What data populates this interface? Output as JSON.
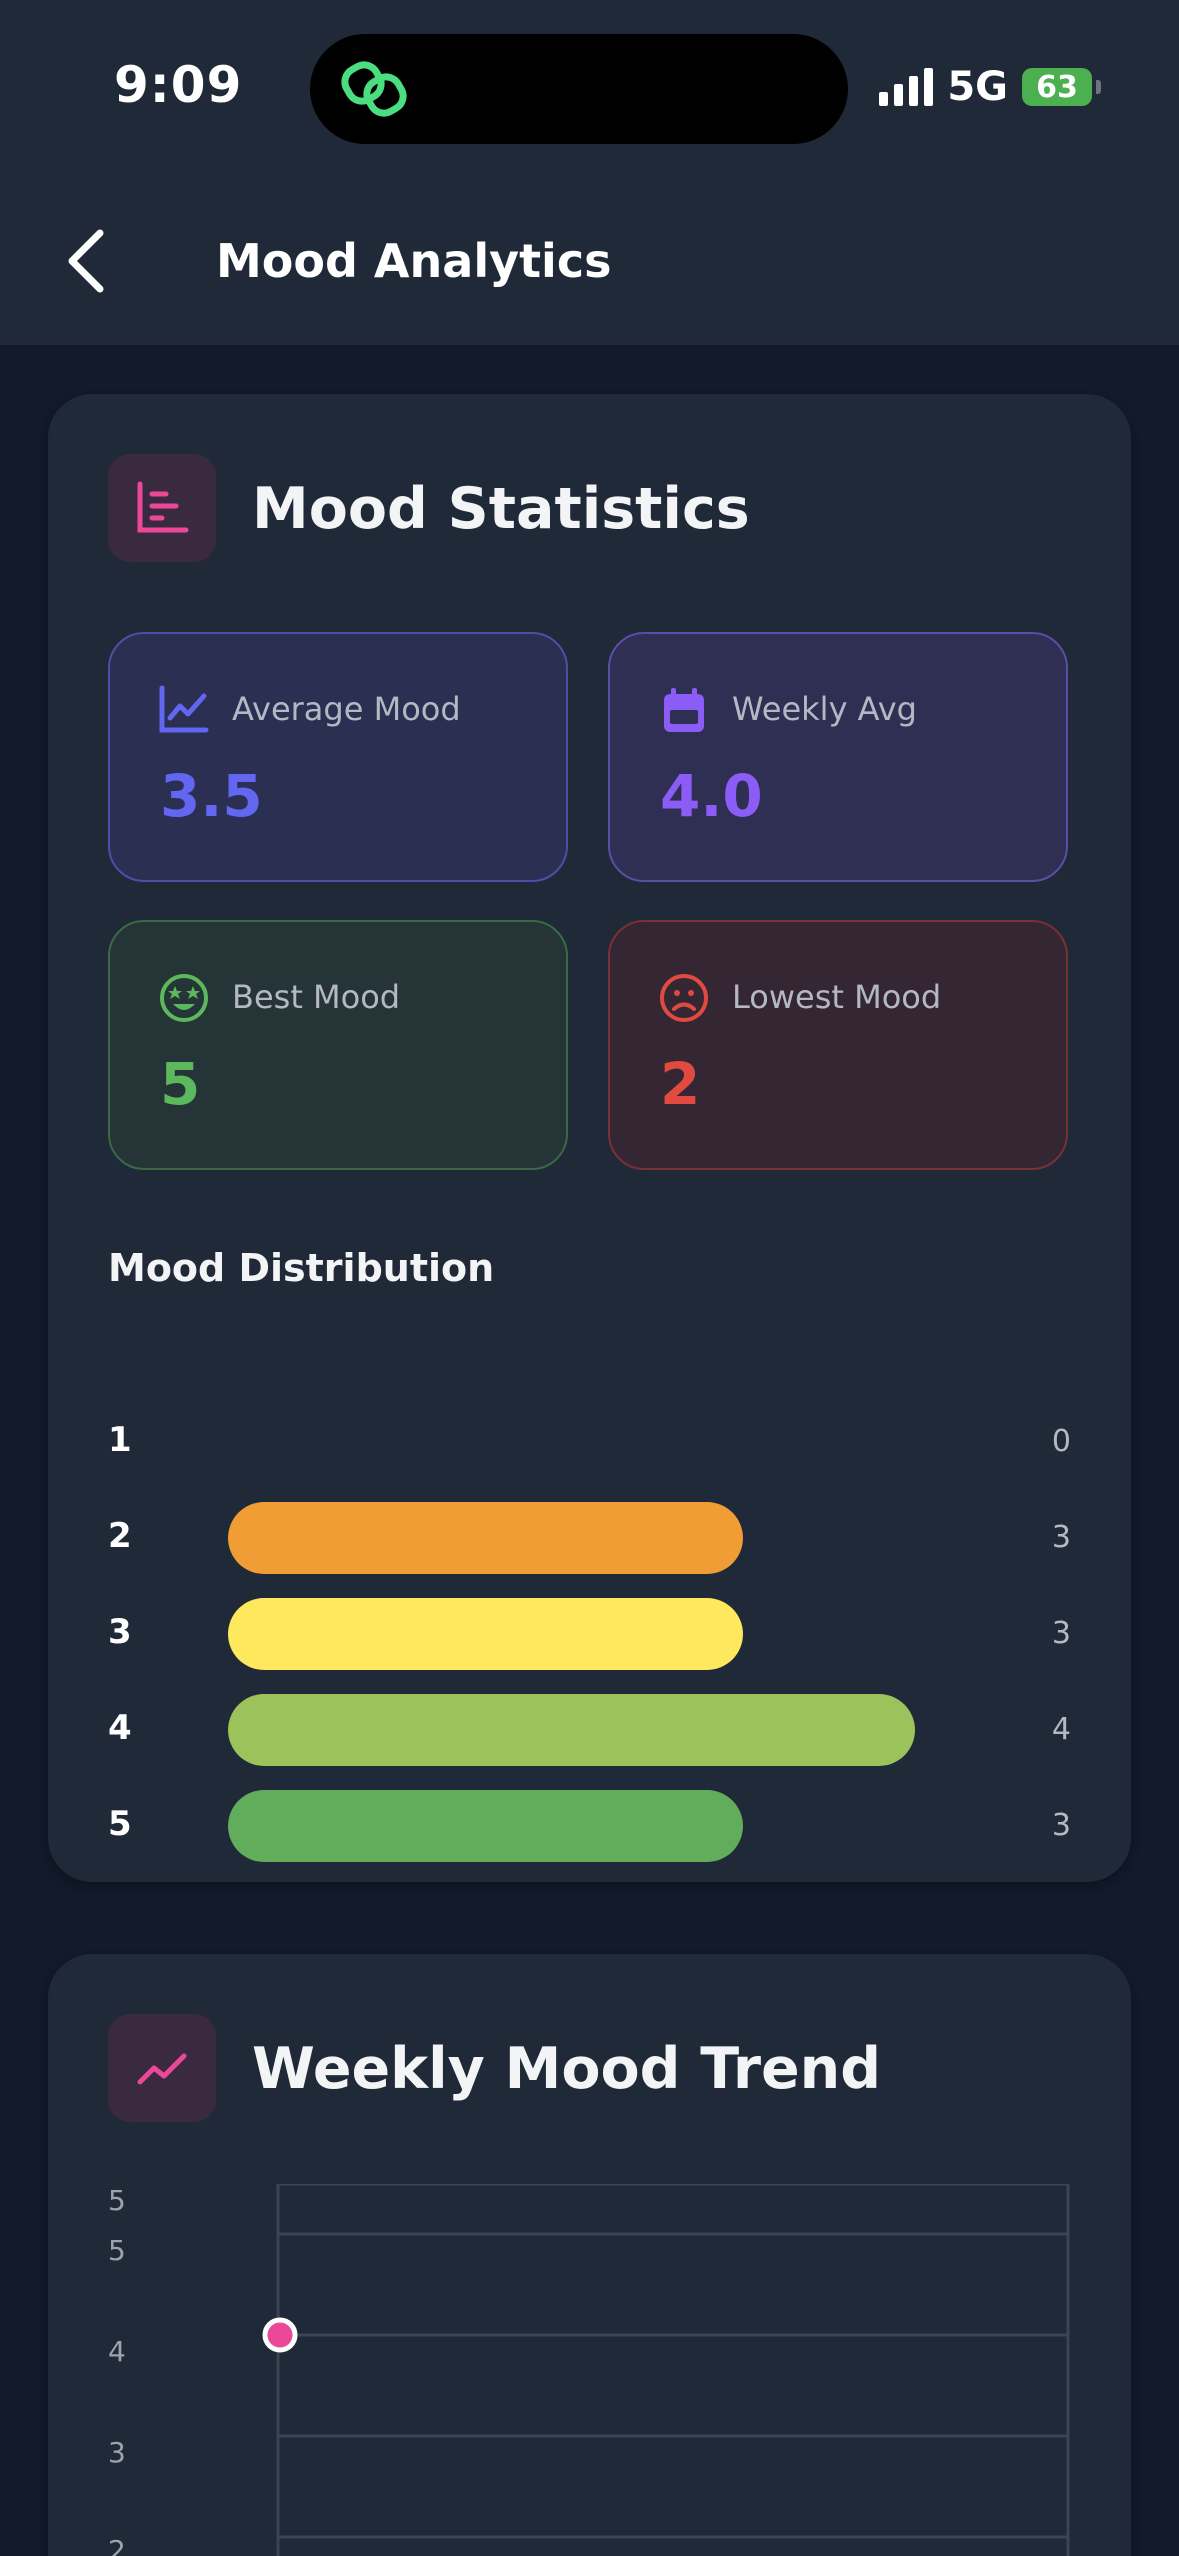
{
  "status_bar": {
    "time": "9:09",
    "network": "5G",
    "battery": "63"
  },
  "header": {
    "title": "Mood Analytics"
  },
  "stats_card": {
    "title": "Mood Statistics",
    "stats": [
      {
        "label": "Average Mood",
        "value": "3.5",
        "color": "#6366f1"
      },
      {
        "label": "Weekly Avg",
        "value": "4.0",
        "color": "#8b5cf6"
      },
      {
        "label": "Best Mood",
        "value": "5",
        "color": "#5cb85c"
      },
      {
        "label": "Lowest Mood",
        "value": "2",
        "color": "#e04a3f"
      }
    ],
    "distribution_title": "Mood Distribution",
    "distribution": [
      {
        "label": "1",
        "count": "0",
        "value": 0,
        "color": "#e53935"
      },
      {
        "label": "2",
        "count": "3",
        "value": 3,
        "color": "#f09d36"
      },
      {
        "label": "3",
        "count": "3",
        "value": 3,
        "color": "#fde85e"
      },
      {
        "label": "4",
        "count": "4",
        "value": 4,
        "color": "#9bc25b"
      },
      {
        "label": "5",
        "count": "3",
        "value": 3,
        "color": "#62ad5b"
      }
    ]
  },
  "trend_card": {
    "title": "Weekly Mood Trend"
  },
  "chart_data": {
    "type": "line",
    "title": "Weekly Mood Trend",
    "y_ticks": [
      "5",
      "5",
      "4",
      "3",
      "2"
    ],
    "ylim": [
      0,
      5
    ],
    "series": [
      {
        "values": [
          4
        ]
      }
    ],
    "point_color": "#ec4899",
    "grid": true
  }
}
